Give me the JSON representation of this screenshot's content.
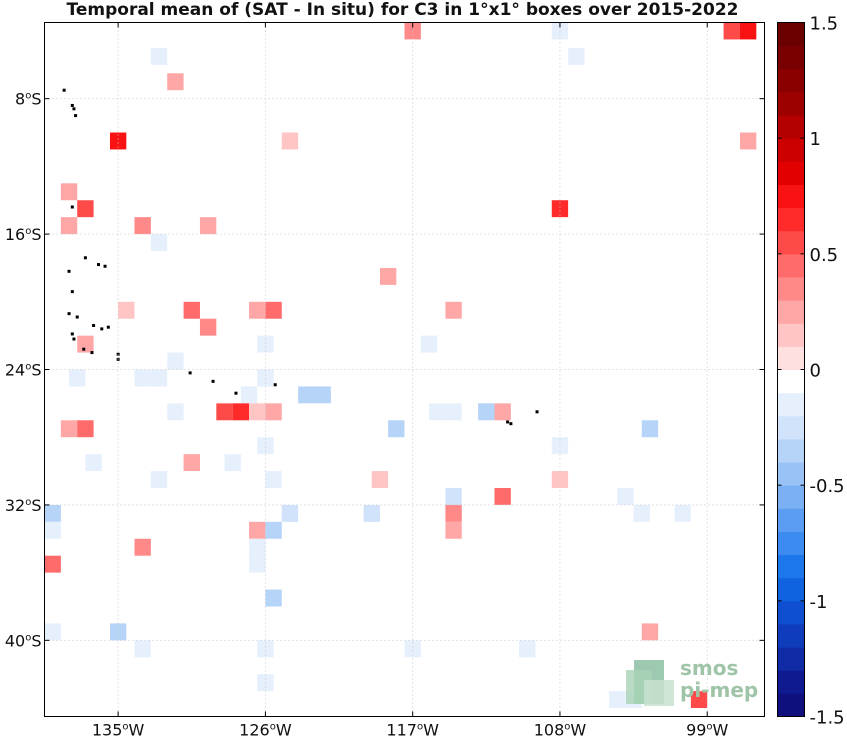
{
  "title": "Temporal mean of (SAT - In situ) for C3 in 1°x1° boxes over 2015-2022",
  "map": {
    "lon_range": [
      -139.5,
      -95.5
    ],
    "lat_range": [
      -44.5,
      -3.5
    ],
    "x_ticks": [
      {
        "lon": -135,
        "label": "135",
        "unit": "W"
      },
      {
        "lon": -126,
        "label": "126",
        "unit": "W"
      },
      {
        "lon": -117,
        "label": "117",
        "unit": "W"
      },
      {
        "lon": -108,
        "label": "108",
        "unit": "W"
      },
      {
        "lon": -99,
        "label": "99",
        "unit": "W"
      }
    ],
    "y_ticks": [
      {
        "lat": -8,
        "label": "8",
        "unit": "S"
      },
      {
        "lat": -16,
        "label": "16",
        "unit": "S"
      },
      {
        "lat": -24,
        "label": "24",
        "unit": "S"
      },
      {
        "lat": -32,
        "label": "32",
        "unit": "S"
      },
      {
        "lat": -40,
        "label": "40",
        "unit": "S"
      }
    ],
    "grid": "dotted",
    "cells": [
      [
        -117.0,
        -4.0,
        0.35
      ],
      [
        -108.0,
        -4.0,
        -0.1
      ],
      [
        -97.5,
        -4.0,
        0.55
      ],
      [
        -96.5,
        -4.0,
        0.7
      ],
      [
        -132.5,
        -5.5,
        -0.1
      ],
      [
        -107.0,
        -5.5,
        -0.1
      ],
      [
        -131.5,
        -7.0,
        0.2
      ],
      [
        -135.0,
        -10.5,
        0.7
      ],
      [
        -124.5,
        -10.5,
        0.15
      ],
      [
        -96.5,
        -10.5,
        0.2
      ],
      [
        -138.0,
        -13.5,
        0.2
      ],
      [
        -137.0,
        -14.5,
        0.55
      ],
      [
        -108.0,
        -14.5,
        0.6
      ],
      [
        -138.0,
        -15.5,
        0.2
      ],
      [
        -133.5,
        -15.5,
        0.35
      ],
      [
        -129.5,
        -15.5,
        0.25
      ],
      [
        -132.5,
        -16.5,
        -0.1
      ],
      [
        -118.5,
        -18.5,
        0.2
      ],
      [
        -134.5,
        -20.5,
        0.15
      ],
      [
        -130.5,
        -20.5,
        0.4
      ],
      [
        -126.5,
        -20.5,
        0.2
      ],
      [
        -125.5,
        -20.5,
        0.45
      ],
      [
        -114.5,
        -20.5,
        0.2
      ],
      [
        -129.5,
        -21.5,
        0.3
      ],
      [
        -137.0,
        -22.5,
        0.2
      ],
      [
        -126.0,
        -22.5,
        -0.1
      ],
      [
        -116.0,
        -22.5,
        -0.1
      ],
      [
        -131.5,
        -23.5,
        -0.1
      ],
      [
        -137.5,
        -24.5,
        -0.1
      ],
      [
        -133.5,
        -24.5,
        -0.2
      ],
      [
        -132.5,
        -24.5,
        -0.1
      ],
      [
        -126.0,
        -24.5,
        -0.1
      ],
      [
        -127.0,
        -25.5,
        -0.1
      ],
      [
        -123.5,
        -25.5,
        -0.35
      ],
      [
        -122.5,
        -25.5,
        -0.35
      ],
      [
        -131.5,
        -26.5,
        -0.1
      ],
      [
        -128.5,
        -26.5,
        0.5
      ],
      [
        -127.5,
        -26.5,
        0.65
      ],
      [
        -126.5,
        -26.5,
        0.15
      ],
      [
        -125.5,
        -26.5,
        0.25
      ],
      [
        -115.5,
        -26.5,
        -0.1
      ],
      [
        -114.5,
        -26.5,
        -0.1
      ],
      [
        -112.5,
        -26.5,
        -0.3
      ],
      [
        -111.5,
        -26.5,
        0.2
      ],
      [
        -138.0,
        -27.5,
        0.2
      ],
      [
        -137.0,
        -27.5,
        0.4
      ],
      [
        -118.0,
        -27.5,
        -0.3
      ],
      [
        -102.5,
        -27.5,
        -0.3
      ],
      [
        -126.0,
        -28.5,
        -0.1
      ],
      [
        -108.0,
        -28.5,
        -0.1
      ],
      [
        -136.5,
        -29.5,
        -0.2
      ],
      [
        -130.5,
        -29.5,
        0.2
      ],
      [
        -128.0,
        -29.5,
        -0.1
      ],
      [
        -132.5,
        -30.5,
        -0.1
      ],
      [
        -125.5,
        -30.5,
        -0.2
      ],
      [
        -119.0,
        -30.5,
        0.15
      ],
      [
        -108.0,
        -30.5,
        0.15
      ],
      [
        -114.5,
        -31.5,
        -0.25
      ],
      [
        -111.5,
        -31.5,
        0.45
      ],
      [
        -104.0,
        -31.5,
        -0.1
      ],
      [
        -139.0,
        -32.5,
        -0.35
      ],
      [
        -124.5,
        -32.5,
        -0.25
      ],
      [
        -119.5,
        -32.5,
        -0.25
      ],
      [
        -114.5,
        -32.5,
        0.3
      ],
      [
        -103.0,
        -32.5,
        -0.1
      ],
      [
        -100.5,
        -32.5,
        -0.1
      ],
      [
        -139.0,
        -33.5,
        -0.15
      ],
      [
        -126.5,
        -33.5,
        0.2
      ],
      [
        -125.5,
        -33.5,
        -0.4
      ],
      [
        -114.5,
        -33.5,
        0.2
      ],
      [
        -133.5,
        -34.5,
        0.35
      ],
      [
        -126.5,
        -34.5,
        -0.1
      ],
      [
        -126.5,
        -35.5,
        -0.1
      ],
      [
        -139.0,
        -35.5,
        0.4
      ],
      [
        -125.5,
        -37.5,
        -0.4
      ],
      [
        -139.0,
        -39.5,
        -0.15
      ],
      [
        -135.0,
        -39.5,
        -0.3
      ],
      [
        -102.5,
        -39.5,
        0.2
      ],
      [
        -133.5,
        -40.5,
        -0.1
      ],
      [
        -126.0,
        -40.5,
        -0.1
      ],
      [
        -117.0,
        -40.5,
        -0.1
      ],
      [
        -110.0,
        -40.5,
        -0.1
      ],
      [
        -126.0,
        -42.5,
        -0.1
      ],
      [
        -104.5,
        -43.5,
        -0.15
      ],
      [
        -103.5,
        -43.5,
        -0.1
      ],
      [
        -99.5,
        -43.5,
        0.55
      ]
    ],
    "islands": [
      [
        -138.3,
        -7.5
      ],
      [
        -137.8,
        -8.4
      ],
      [
        -137.7,
        -8.6
      ],
      [
        -137.6,
        -9.0
      ],
      [
        -137.8,
        -14.4
      ],
      [
        -137.0,
        -17.4
      ],
      [
        -136.2,
        -17.8
      ],
      [
        -135.8,
        -17.9
      ],
      [
        -138.0,
        -18.2
      ],
      [
        -137.8,
        -19.4
      ],
      [
        -138.0,
        -20.7
      ],
      [
        -137.5,
        -20.9
      ],
      [
        -136.5,
        -21.4
      ],
      [
        -136.0,
        -21.6
      ],
      [
        -135.6,
        -21.5
      ],
      [
        -137.8,
        -21.9
      ],
      [
        -137.7,
        -22.2
      ],
      [
        -137.1,
        -22.8
      ],
      [
        -136.6,
        -23.0
      ],
      [
        -135.0,
        -23.1
      ],
      [
        -135.0,
        -23.4
      ],
      [
        -130.6,
        -24.2
      ],
      [
        -129.2,
        -24.7
      ],
      [
        -125.4,
        -24.9
      ],
      [
        -127.8,
        -25.4
      ],
      [
        -111.2,
        -27.1
      ],
      [
        -111.0,
        -27.2
      ],
      [
        -109.4,
        -26.5
      ]
    ]
  },
  "colorbar": {
    "min": -1.5,
    "max": 1.5,
    "tick_labels": [
      {
        "value": 1.5,
        "label": "1.5"
      },
      {
        "value": 1,
        "label": "1"
      },
      {
        "value": 0.5,
        "label": "0.5"
      },
      {
        "value": 0,
        "label": "0"
      },
      {
        "value": -0.5,
        "label": "-0.5"
      },
      {
        "value": -1,
        "label": "-1"
      },
      {
        "value": -1.5,
        "label": "-1.5"
      }
    ],
    "colors": [
      "#0f0f7d",
      "#0f1a91",
      "#0f2ba5",
      "#0f3cbb",
      "#0f4ecf",
      "#0f62e0",
      "#1c76ec",
      "#3b8bf0",
      "#5b9df2",
      "#7bb0f4",
      "#99c2f6",
      "#b6d3f8",
      "#d1e3fb",
      "#e6f0fd",
      "#ffffff",
      "#ffe0e0",
      "#ffc4c4",
      "#ffa7a7",
      "#ff8888",
      "#ff6a6a",
      "#ff4a4a",
      "#ff2a2a",
      "#f81212",
      "#e30000",
      "#cc0000",
      "#b40000",
      "#9e0000",
      "#8a0000",
      "#780000",
      "#6a0000"
    ]
  },
  "logo": {
    "line1": "smos",
    "line2": "pi-mep"
  }
}
